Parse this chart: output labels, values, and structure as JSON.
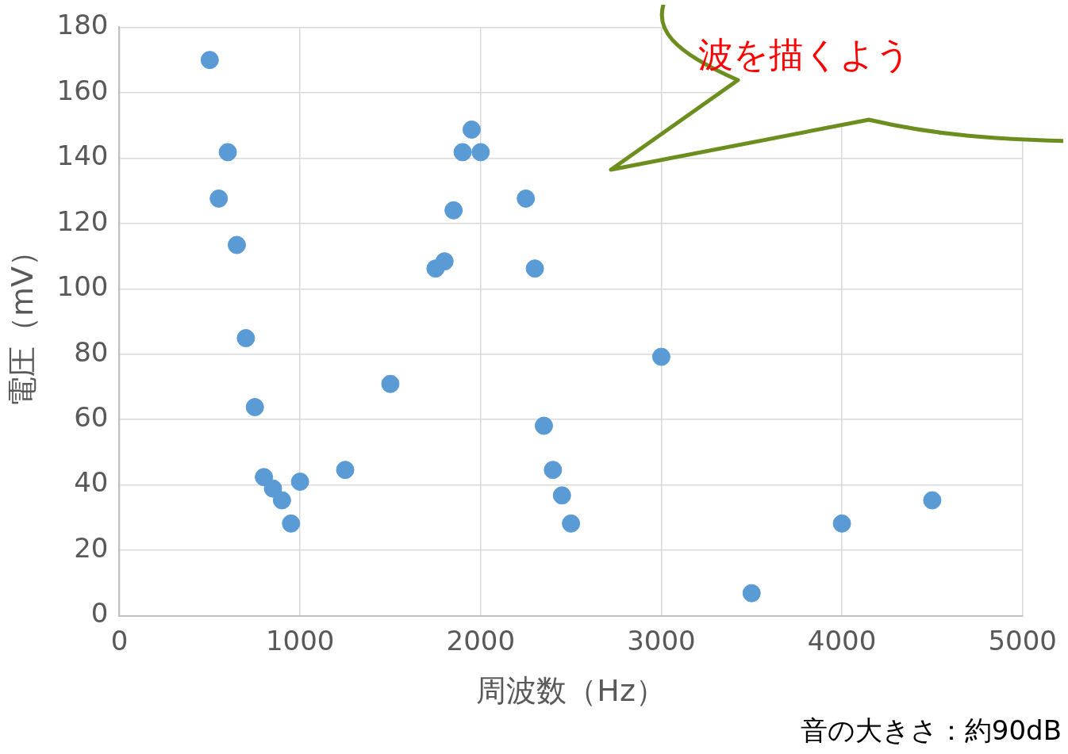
{
  "chart_data": {
    "type": "scatter",
    "xlabel": "周波数（Hz）",
    "ylabel": "電圧（mV）",
    "annotations": [
      "波を描くよう",
      "音の大きさ：約90dB"
    ],
    "xlim": [
      0,
      5000
    ],
    "xticks": [
      0,
      1000,
      2000,
      3000,
      4000,
      5000
    ],
    "ylim": [
      0,
      180
    ],
    "yticks": [
      0,
      20,
      40,
      60,
      80,
      100,
      120,
      140,
      160,
      180
    ],
    "grid": true,
    "legend": false,
    "marker": "circle",
    "series": [
      {
        "color": "#5b9bd5",
        "x": [
          500,
          550,
          600,
          650,
          700,
          750,
          800,
          850,
          900,
          950,
          1000,
          1250,
          1500,
          1750,
          1800,
          1850,
          1900,
          1950,
          2000,
          2250,
          2300,
          2350,
          2400,
          2450,
          2500,
          3000,
          3500,
          4000,
          4500
        ],
        "values": [
          170,
          127.6,
          141.8,
          113.4,
          84.9,
          63.8,
          42.4,
          38.9,
          35.3,
          28.2,
          41,
          44.6,
          70.9,
          106.2,
          108.4,
          124,
          141.8,
          148.7,
          141.8,
          127.6,
          106.2,
          58.1,
          44.6,
          36.8,
          28.2,
          79.2,
          6.9,
          28.2,
          35.3
        ]
      }
    ]
  }
}
